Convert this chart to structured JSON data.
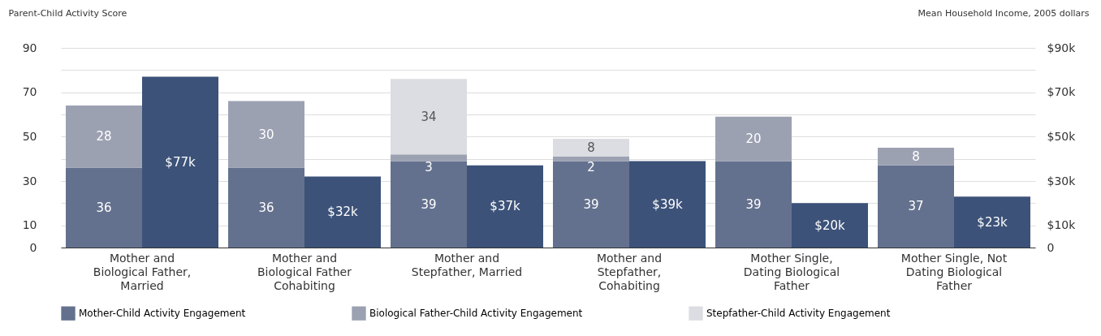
{
  "chart_data": {
    "type": "bar",
    "stacked": true,
    "ylabel": "Parent-Child Activity Score",
    "y2label": "Mean Household Income, 2005 dollars",
    "categories": [
      "Mother and Biological Father, Married",
      "Mother and Biological Father Cohabiting",
      "Mother and Stepfather, Married",
      "Mother and Stepfather, Cohabiting",
      "Mother Single, Dating Biological Father",
      "Mother Single, Not Dating Biological Father"
    ],
    "series": [
      {
        "name": "Mother-Child Activity Engagement",
        "color": "#64718e",
        "values": [
          36,
          36,
          39,
          39,
          39,
          37
        ]
      },
      {
        "name": "Biological Father-Child Activity Engagement",
        "color": "#9ca1b2",
        "values": [
          28,
          30,
          3,
          2,
          20,
          8
        ]
      },
      {
        "name": "Stepfather-Child Activity Engagement",
        "color": "#dcdde2",
        "values": [
          null,
          null,
          34,
          8,
          null,
          null
        ]
      },
      {
        "color": "#3c5279",
        "axis": "y2",
        "values": [
          77,
          32,
          37,
          39,
          20,
          23
        ],
        "value_labels": [
          "$77k",
          "$32k",
          "$37k",
          "$39k",
          "$20k",
          "$23k"
        ]
      }
    ],
    "data_labels": true,
    "ylim": [
      0,
      90
    ],
    "yticks": [
      0,
      10,
      {
        "value": 20,
        "label": null
      },
      30,
      {
        "value": 40,
        "label": null
      },
      50,
      {
        "value": 60,
        "label": null
      },
      70,
      {
        "value": 80,
        "label": null
      },
      90
    ],
    "y2lim": [
      0,
      90
    ],
    "y2ticks": [
      0,
      {
        "value": 10,
        "label": "$10k"
      },
      {
        "value": 20,
        "label": null
      },
      {
        "value": 30,
        "label": "$30k"
      },
      {
        "value": 40,
        "label": null
      },
      {
        "value": 50,
        "label": "$50k"
      },
      {
        "value": 60,
        "label": null
      },
      {
        "value": 70,
        "label": "$70k"
      },
      {
        "value": 80,
        "label": null
      },
      {
        "value": 90,
        "label": "$90k"
      }
    ],
    "grid": "y",
    "legend": "bottom"
  }
}
